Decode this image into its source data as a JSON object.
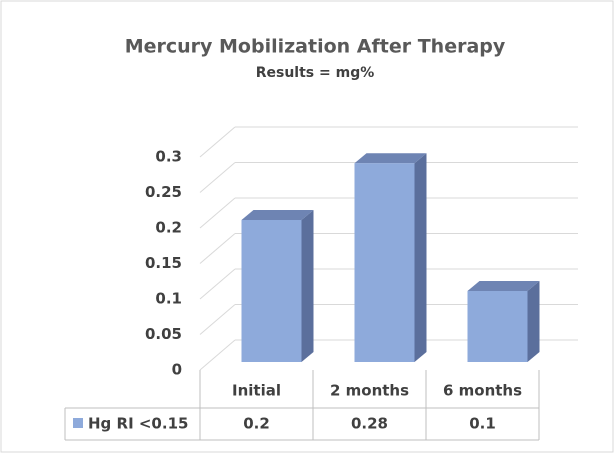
{
  "chart_data": {
    "type": "bar3d",
    "title": "Mercury Mobilization After Therapy",
    "subtitle": "Results = mg%",
    "categories": [
      "Initial",
      "2 months",
      "6 months"
    ],
    "series": [
      {
        "name": "Hg RI <0.15",
        "color": "#8eaadb",
        "values": [
          0.2,
          0.28,
          0.1
        ]
      }
    ],
    "ylim": [
      0,
      0.3
    ],
    "yticks": [
      0,
      0.05,
      0.1,
      0.15,
      0.2,
      0.25,
      0.3
    ],
    "grid": true
  }
}
